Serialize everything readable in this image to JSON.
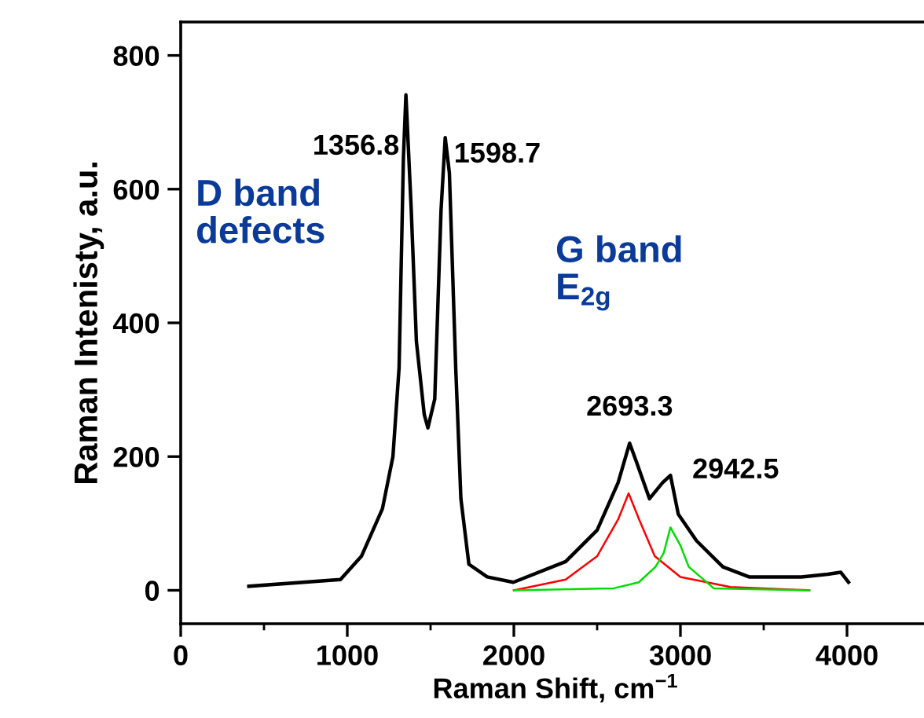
{
  "chart_data": {
    "type": "line",
    "xlabel": "Raman Shift, cm$^{−1}$",
    "ylabel": "Raman Intenisty, a.u.",
    "xlim": [
      0,
      4500
    ],
    "ylim": [
      -50,
      850
    ],
    "xticks": [
      0,
      1000,
      2000,
      3000,
      4000
    ],
    "yticks": [
      0,
      200,
      400,
      600,
      800
    ],
    "grid": false,
    "legend": false,
    "series": [
      {
        "color": "#000000",
        "x": [
          409,
          959,
          1085,
          1211,
          1274,
          1311,
          1337,
          1352,
          1384,
          1415,
          1462,
          1484,
          1525,
          1563,
          1588,
          1613,
          1651,
          1682,
          1730,
          1840,
          1997,
          2311,
          2500,
          2626,
          2695,
          2736,
          2814,
          2893,
          2940,
          2987,
          3097,
          3255,
          3412,
          3726,
          3884,
          3962,
          4009
        ],
        "values": [
          6,
          16,
          51,
          122,
          200,
          333,
          647,
          741,
          569,
          372,
          263,
          243,
          286,
          569,
          677,
          624,
          333,
          137,
          39,
          20,
          12,
          43,
          90,
          161,
          220,
          192,
          137,
          161,
          172,
          114,
          74,
          35,
          20,
          20,
          24,
          27,
          12
        ]
      },
      {
        "color": "#ff0000",
        "x": [
          2000,
          2311,
          2500,
          2626,
          2689,
          2752,
          2846,
          3000,
          3300,
          3774
        ],
        "values": [
          0,
          16,
          51,
          106,
          145,
          106,
          51,
          20,
          5,
          0
        ]
      },
      {
        "color": "#00dd00",
        "x": [
          2000,
          2600,
          2750,
          2850,
          2900,
          2940,
          3000,
          3050,
          3200,
          3774
        ],
        "values": [
          0,
          3,
          12,
          35,
          56,
          94,
          67,
          35,
          3,
          0
        ]
      }
    ],
    "annotations": [
      {
        "text": "1356.8",
        "x": 1352,
        "y": 741
      },
      {
        "text": "1598.7",
        "x": 1588,
        "y": 677
      },
      {
        "text": "2693.3",
        "x": 2695,
        "y": 220
      },
      {
        "text": "2942.5",
        "x": 2940,
        "y": 172
      },
      "D band\ndefects",
      "G band\nE$_{2g}$"
    ]
  }
}
